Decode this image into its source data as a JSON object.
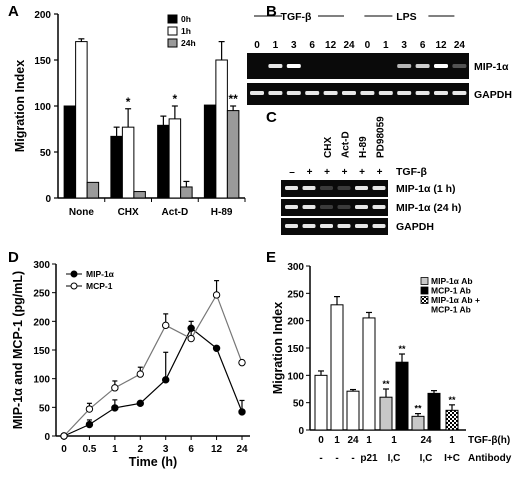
{
  "chart_data": [
    {
      "panel": "A",
      "type": "bar",
      "ylabel": "Migration Index",
      "ylim": [
        0,
        200
      ],
      "yticks": [
        0,
        50,
        100,
        150,
        200
      ],
      "categories": [
        "None",
        "CHX",
        "Act-D",
        "H-89"
      ],
      "series": [
        {
          "name": "0h",
          "color": "#000000",
          "values": [
            100,
            67,
            79,
            101
          ],
          "err": [
            0,
            10,
            10,
            0
          ]
        },
        {
          "name": "1h",
          "color": "#ffffff",
          "values": [
            170,
            77,
            86,
            150
          ],
          "err": [
            3,
            20,
            14,
            20
          ]
        },
        {
          "name": "24h",
          "color": "#9a9a9a",
          "values": [
            17,
            7,
            12,
            95
          ],
          "err": [
            0,
            0,
            6,
            5
          ]
        }
      ],
      "annotations": [
        {
          "category": 1,
          "series": 1,
          "text": "*"
        },
        {
          "category": 2,
          "series": 1,
          "text": "*"
        },
        {
          "category": 3,
          "series": 2,
          "text": "**"
        }
      ]
    },
    {
      "panel": "B",
      "type": "gel",
      "groups": [
        "TGF-β",
        "LPS"
      ],
      "lanes": [
        "0",
        "1",
        "3",
        "6",
        "12",
        "24",
        "0",
        "1",
        "3",
        "6",
        "12",
        "24"
      ],
      "rows": [
        "MIP-1α",
        "GAPDH"
      ]
    },
    {
      "panel": "C",
      "type": "gel",
      "lanes": [
        "CHX",
        "Act-D",
        "H-89",
        "PD98059"
      ],
      "treatment_label": "TGF-β",
      "treatment_signs": [
        "–",
        "+",
        "+",
        "+",
        "+",
        "+"
      ],
      "rows": [
        "MIP-1α (1 h)",
        "MIP-1α (24 h)",
        "GAPDH"
      ]
    },
    {
      "panel": "D",
      "type": "line",
      "xlabel": "Time (h)",
      "ylabel": "MIP-1α and MCP-1 (pg/mL)",
      "categories": [
        "0",
        "0.5",
        "1",
        "2",
        "3",
        "6",
        "12",
        "24"
      ],
      "ylim": [
        0,
        300
      ],
      "yticks": [
        0,
        50,
        100,
        150,
        200,
        250,
        300
      ],
      "series": [
        {
          "name": "MIP-1α",
          "marker": "filled",
          "values": [
            0,
            20,
            49,
            57,
            98,
            188,
            153,
            42
          ],
          "err": [
            0,
            8,
            14,
            0,
            48,
            12,
            0,
            20
          ]
        },
        {
          "name": "MCP-1",
          "marker": "open",
          "values": [
            0,
            47,
            84,
            108,
            193,
            170,
            246,
            128
          ],
          "err": [
            0,
            10,
            12,
            12,
            20,
            20,
            25,
            0
          ]
        }
      ],
      "legend": "top-left"
    },
    {
      "panel": "E",
      "type": "bar",
      "ylabel": "Migration Index",
      "ylim": [
        0,
        300
      ],
      "yticks": [
        0,
        50,
        100,
        150,
        200,
        250,
        300
      ],
      "row1_label": "TGF-β(h)",
      "row2_label": "Antibody",
      "categories": [
        {
          "tgf": "0",
          "ab": "-",
          "value": 100,
          "err": 8,
          "fill": "white",
          "stars": ""
        },
        {
          "tgf": "1",
          "ab": "-",
          "value": 229,
          "err": 15,
          "fill": "white",
          "stars": ""
        },
        {
          "tgf": "24",
          "ab": "-",
          "value": 71,
          "err": 3,
          "fill": "white",
          "stars": ""
        },
        {
          "tgf": "1",
          "ab": "p21",
          "value": 205,
          "err": 10,
          "fill": "white",
          "stars": ""
        },
        {
          "tgf": "1",
          "ab": "I,C",
          "value": 60,
          "err": 15,
          "fill": "lightgray",
          "stars": "**",
          "pair_with_next": true
        },
        {
          "tgf": "",
          "ab": "",
          "value": 124,
          "err": 15,
          "fill": "black",
          "stars": "**"
        },
        {
          "tgf": "24",
          "ab": "I,C",
          "value": 25,
          "err": 5,
          "fill": "lightgray",
          "stars": "**",
          "pair_with_next": true
        },
        {
          "tgf": "",
          "ab": "",
          "value": 67,
          "err": 5,
          "fill": "black",
          "stars": ""
        },
        {
          "tgf": "1",
          "ab": "I+C",
          "value": 36,
          "err": 10,
          "fill": "checker",
          "stars": "**"
        }
      ],
      "legend": [
        {
          "label": "MIP-1α Ab",
          "fill": "lightgray"
        },
        {
          "label": "MCP-1 Ab",
          "fill": "black"
        },
        {
          "label": "MIP-1α Ab +",
          "fill": "checker"
        },
        {
          "label": "MCP-1 Ab",
          "fill": "none"
        }
      ]
    }
  ]
}
